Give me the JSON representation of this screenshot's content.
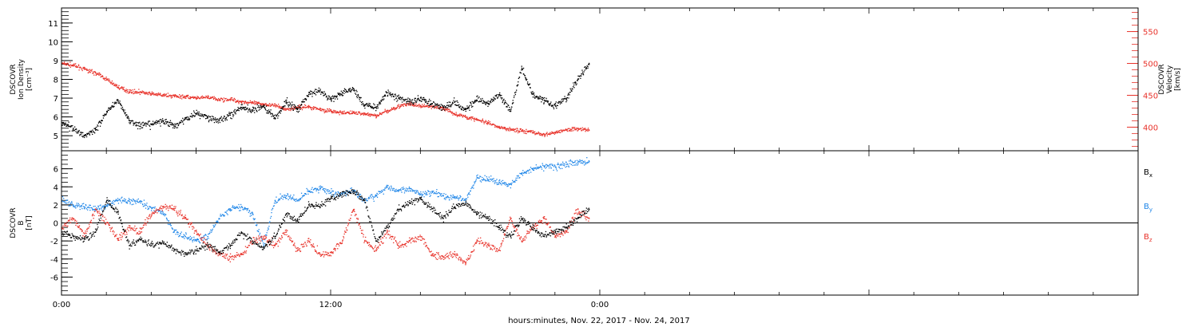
{
  "colors": {
    "black": "#000000",
    "red": "#e8322a",
    "blue": "#1f86e8",
    "frame": "#000000"
  },
  "chart_data": [
    {
      "type": "scatter",
      "panel": "plasma",
      "xlim_hours": [
        0,
        48
      ],
      "y_left": {
        "label_lines": [
          "DSCOVR",
          "Ion Density",
          "[cm⁻³]"
        ],
        "ylim": [
          4.2,
          11.8
        ],
        "ticks": [
          5,
          6,
          7,
          8,
          9,
          10,
          11
        ]
      },
      "y_right": {
        "label_lines": [
          "DSCOVR",
          "Velocity",
          "[km/s]"
        ],
        "ylim": [
          363,
          587
        ],
        "ticks": [
          400,
          450,
          500,
          550
        ]
      },
      "series": [
        {
          "color": "black",
          "axis": "left",
          "x_hours": [
            0,
            0.5,
            1,
            1.5,
            2,
            2.5,
            3,
            3.5,
            4,
            4.5,
            5,
            5.5,
            6,
            6.5,
            7,
            7.5,
            8,
            8.5,
            9,
            9.5,
            10,
            10.5,
            11,
            11.5,
            12,
            12.5,
            13,
            13.5,
            14,
            14.5,
            15,
            15.5,
            16,
            16.5,
            17,
            17.5,
            18,
            18.5,
            19,
            19.5,
            20,
            20.5,
            21,
            21.5,
            22,
            22.5,
            23,
            23.5
          ],
          "values": [
            5.7,
            5.4,
            5.0,
            5.3,
            6.3,
            6.9,
            5.8,
            5.5,
            5.6,
            5.8,
            5.5,
            5.9,
            6.2,
            6.0,
            5.8,
            6.1,
            6.5,
            6.3,
            6.6,
            5.9,
            6.8,
            6.4,
            7.2,
            7.4,
            6.9,
            7.3,
            7.5,
            6.6,
            6.5,
            7.3,
            7.0,
            6.8,
            7.0,
            6.7,
            6.5,
            6.8,
            6.4,
            6.9,
            6.7,
            7.2,
            6.3,
            8.6,
            7.2,
            6.9,
            6.6,
            7.0,
            8.0,
            8.8
          ]
        },
        {
          "color": "red",
          "axis": "right",
          "x_hours": [
            0,
            0.5,
            1,
            1.5,
            2,
            2.5,
            3,
            3.5,
            4,
            4.5,
            5,
            5.5,
            6,
            6.5,
            7,
            7.5,
            8,
            8.5,
            9,
            9.5,
            10,
            10.5,
            11,
            11.5,
            12,
            12.5,
            13,
            13.5,
            14,
            14.5,
            15,
            15.5,
            16,
            16.5,
            17,
            17.5,
            18,
            18.5,
            19,
            19.5,
            20,
            20.5,
            21,
            21.5,
            22,
            22.5,
            23,
            23.5
          ],
          "values": [
            500,
            497,
            491,
            485,
            475,
            463,
            456,
            455,
            452,
            450,
            449,
            448,
            445,
            447,
            443,
            444,
            440,
            438,
            436,
            434,
            428,
            431,
            432,
            428,
            425,
            422,
            423,
            421,
            418,
            425,
            433,
            436,
            433,
            432,
            430,
            421,
            416,
            412,
            406,
            399,
            397,
            394,
            392,
            388,
            392,
            396,
            398,
            395
          ]
        }
      ]
    },
    {
      "type": "scatter",
      "panel": "magnetic-field",
      "xlim_hours": [
        0,
        48
      ],
      "y_left": {
        "label_lines": [
          "DSCOVR",
          "B",
          "[nT]"
        ],
        "ylim": [
          -8,
          8
        ],
        "ticks": [
          -6,
          -4,
          -2,
          0,
          2,
          4,
          6
        ]
      },
      "x_axis": {
        "tick_hours": [
          0,
          12,
          24
        ],
        "tick_labels": [
          "0:00",
          "12:00",
          "0:00"
        ],
        "title": "hours:minutes, Nov. 22, 2017 - Nov. 24, 2017"
      },
      "legend": [
        {
          "base": "B",
          "sub": "x",
          "color": "black"
        },
        {
          "base": "B",
          "sub": "y",
          "color": "blue"
        },
        {
          "base": "B",
          "sub": "z",
          "color": "red"
        }
      ],
      "series": [
        {
          "name": "Bx",
          "color": "black",
          "x_hours": [
            0,
            0.5,
            1,
            1.5,
            2,
            2.5,
            3,
            3.5,
            4,
            4.5,
            5,
            5.5,
            6,
            6.5,
            7,
            7.5,
            8,
            8.5,
            9,
            9.5,
            10,
            10.5,
            11,
            11.5,
            12,
            12.5,
            13,
            13.5,
            14,
            14.5,
            15,
            15.5,
            16,
            16.5,
            17,
            17.5,
            18,
            18.5,
            19,
            19.5,
            20,
            20.5,
            21,
            21.5,
            22,
            22.5,
            23,
            23.5
          ],
          "values": [
            -1.0,
            -1.5,
            -1.8,
            -1.0,
            2.5,
            1.2,
            -2.5,
            -1.8,
            -2.5,
            -2.2,
            -3.0,
            -3.5,
            -3.0,
            -2.5,
            -3.2,
            -2.6,
            -1.0,
            -2.0,
            -2.8,
            -1.5,
            1.0,
            0.2,
            2.0,
            1.8,
            2.8,
            3.2,
            3.5,
            2.5,
            -2.0,
            -0.5,
            1.5,
            2.2,
            2.6,
            1.6,
            0.5,
            1.8,
            2.2,
            1.0,
            0.5,
            -0.5,
            -1.5,
            0.5,
            -0.5,
            -1.5,
            -1.0,
            -0.5,
            0.5,
            1.5
          ]
        },
        {
          "name": "By",
          "color": "blue",
          "x_hours": [
            0,
            0.5,
            1,
            1.5,
            2,
            2.5,
            3,
            3.5,
            4,
            4.5,
            5,
            5.5,
            6,
            6.5,
            7,
            7.5,
            8,
            8.5,
            9,
            9.5,
            10,
            10.5,
            11,
            11.5,
            12,
            12.5,
            13,
            13.5,
            14,
            14.5,
            15,
            15.5,
            16,
            16.5,
            17,
            17.5,
            18,
            18.5,
            19,
            19.5,
            20,
            20.5,
            21,
            21.5,
            22,
            22.5,
            23,
            23.5
          ],
          "values": [
            2.5,
            2.0,
            1.8,
            1.5,
            2.0,
            2.5,
            2.4,
            2.4,
            1.6,
            1.2,
            -1.0,
            -1.5,
            -2.0,
            -1.5,
            0.5,
            1.5,
            1.8,
            1.0,
            -2.5,
            2.5,
            3.0,
            2.5,
            3.5,
            3.8,
            3.4,
            3.2,
            3.5,
            2.5,
            3.0,
            4.0,
            3.5,
            3.8,
            3.2,
            3.5,
            3.0,
            2.8,
            2.5,
            5.0,
            4.8,
            4.5,
            4.3,
            5.5,
            6.0,
            6.3,
            6.2,
            6.5,
            6.7,
            6.8
          ]
        },
        {
          "name": "Bz",
          "color": "red",
          "x_hours": [
            0,
            0.5,
            1,
            1.5,
            2,
            2.5,
            3,
            3.5,
            4,
            4.5,
            5,
            5.5,
            6,
            6.5,
            7,
            7.5,
            8,
            8.5,
            9,
            9.5,
            10,
            10.5,
            11,
            11.5,
            12,
            12.5,
            13,
            13.5,
            14,
            14.5,
            15,
            15.5,
            16,
            16.5,
            17,
            17.5,
            18,
            18.5,
            19,
            19.5,
            20,
            20.5,
            21,
            21.5,
            22,
            22.5,
            23,
            23.5
          ],
          "values": [
            -0.5,
            0.5,
            -1.5,
            1.5,
            0.0,
            -1.8,
            -0.5,
            -1.0,
            1.0,
            1.8,
            1.6,
            0.5,
            -1.0,
            -2.5,
            -3.5,
            -3.8,
            -3.5,
            -2.0,
            -1.5,
            -2.5,
            -1.0,
            -3.0,
            -2.0,
            -3.5,
            -3.3,
            -2.0,
            1.5,
            -2.0,
            -3.0,
            -1.0,
            -2.5,
            -2.0,
            -1.5,
            -3.5,
            -3.8,
            -3.5,
            -4.5,
            -2.0,
            -2.5,
            -3.0,
            0.5,
            -2.0,
            -0.5,
            0.5,
            -1.5,
            -1.0,
            1.5,
            0.5
          ]
        }
      ]
    }
  ]
}
